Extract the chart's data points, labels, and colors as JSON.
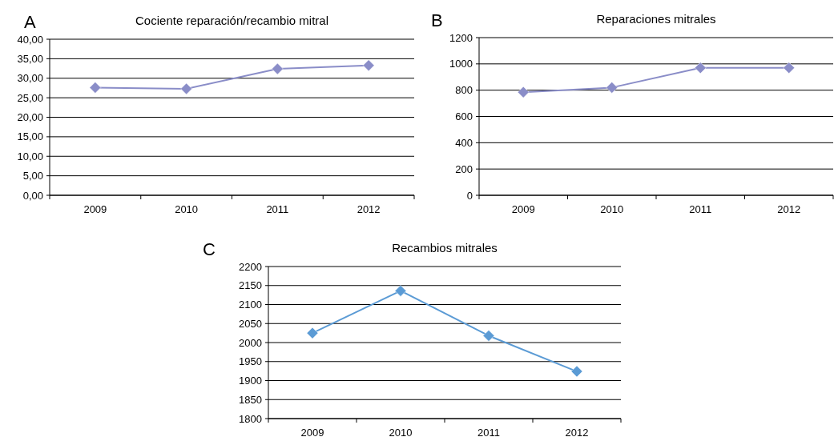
{
  "chart_data": [
    {
      "type": "line",
      "title": "Cociente reparación/recambio mitral",
      "annotations": [
        "A"
      ],
      "categories": [
        "2009",
        "2010",
        "2011",
        "2012"
      ],
      "series": [
        {
          "color": "#8a8dc8",
          "values": [
            27.6,
            27.3,
            32.4,
            33.3
          ]
        }
      ],
      "ylim": [
        0,
        40
      ],
      "yticks": [
        {
          "value": 0,
          "label": "0,00"
        },
        {
          "value": 5,
          "label": "5,00"
        },
        {
          "value": 10,
          "label": "10,00"
        },
        {
          "value": 15,
          "label": "15,00"
        },
        {
          "value": 20,
          "label": "20,00"
        },
        {
          "value": 25,
          "label": "25,00"
        },
        {
          "value": 30,
          "label": "30,00"
        },
        {
          "value": 35,
          "label": "35,00"
        },
        {
          "value": 40,
          "label": "40,00"
        }
      ],
      "grid": "y",
      "marker": "diamond"
    },
    {
      "type": "line",
      "title": "Reparaciones mitrales",
      "annotations": [
        "B"
      ],
      "categories": [
        "2009",
        "2010",
        "2011",
        "2012"
      ],
      "series": [
        {
          "color": "#8a8dc8",
          "values": [
            785,
            820,
            970,
            970
          ]
        }
      ],
      "ylim": [
        0,
        1200
      ],
      "yticks": [
        0,
        200,
        400,
        600,
        800,
        1000,
        1200
      ],
      "grid": "y",
      "marker": "diamond"
    },
    {
      "type": "line",
      "title": "Recambios mitrales",
      "annotations": [
        "C"
      ],
      "categories": [
        "2009",
        "2010",
        "2011",
        "2012"
      ],
      "series": [
        {
          "color": "#5b9bd5",
          "values": [
            2025,
            2136,
            2018,
            1924
          ]
        }
      ],
      "ylim": [
        1800,
        2200
      ],
      "yticks": [
        1800,
        1850,
        1900,
        1950,
        2000,
        2050,
        2100,
        2150,
        2200
      ],
      "grid": "y",
      "marker": "diamond"
    }
  ]
}
